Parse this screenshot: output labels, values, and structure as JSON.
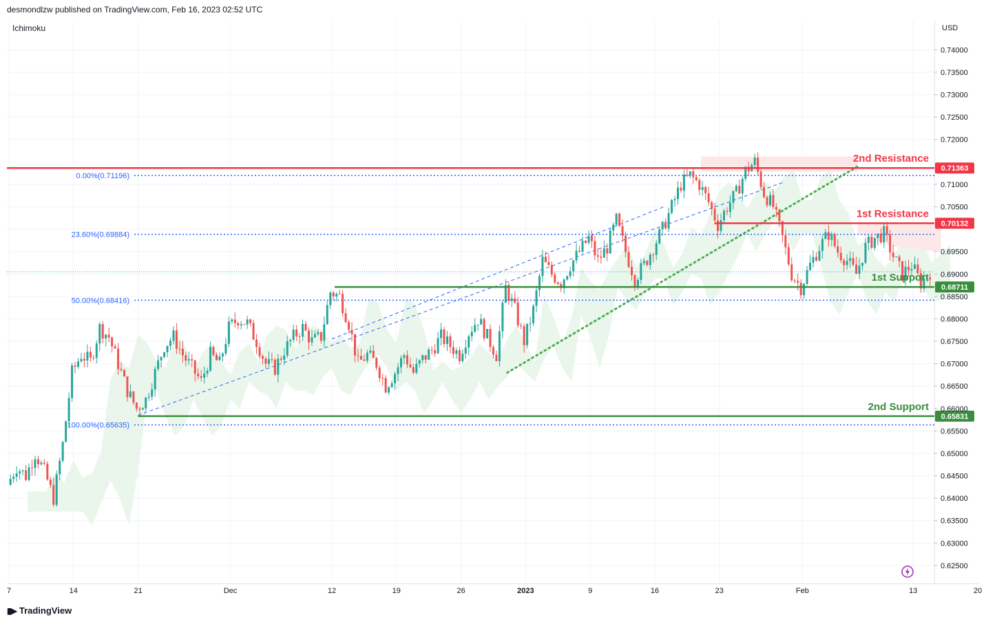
{
  "header": {
    "publisher_line": "desmondlzw published on TradingView.com, Feb 16, 2023 02:52 UTC",
    "indicator": "Ichimoku",
    "currency": "USD"
  },
  "footer": {
    "logo_text": "TradingView"
  },
  "colors": {
    "up": "#26a69a",
    "down": "#ef5350",
    "resistance": "#f23645",
    "support": "#388e3c",
    "fib": "#2962ff",
    "trend_green": "#4caf50",
    "cloud_green": "#e8f5e9",
    "cloud_red": "#fde8e8"
  },
  "chart_data": {
    "type": "candlestick",
    "y_axis": {
      "unit": "USD",
      "range": [
        0.621,
        0.7465
      ],
      "ticks": [
        "0.74000",
        "0.73500",
        "0.73000",
        "0.72500",
        "0.72000",
        "0.71500",
        "0.71000",
        "0.70500",
        "0.70000",
        "0.69500",
        "0.69000",
        "0.68500",
        "0.68000",
        "0.67500",
        "0.67000",
        "0.66500",
        "0.66000",
        "0.65500",
        "0.65000",
        "0.64500",
        "0.64000",
        "0.63500",
        "0.63000",
        "0.62500"
      ]
    },
    "x_axis": {
      "ticks": [
        {
          "label": "7",
          "day": 0,
          "bold": false
        },
        {
          "label": "14",
          "day": 7,
          "bold": false
        },
        {
          "label": "21",
          "day": 14,
          "bold": false
        },
        {
          "label": "Dec",
          "day": 24,
          "bold": false
        },
        {
          "label": "12",
          "day": 35,
          "bold": false
        },
        {
          "label": "19",
          "day": 42,
          "bold": false
        },
        {
          "label": "26",
          "day": 49,
          "bold": false
        },
        {
          "label": "2023",
          "day": 56,
          "bold": true
        },
        {
          "label": "9",
          "day": 63,
          "bold": false
        },
        {
          "label": "16",
          "day": 70,
          "bold": false
        },
        {
          "label": "23",
          "day": 77,
          "bold": false
        },
        {
          "label": "Feb",
          "day": 86,
          "bold": false
        },
        {
          "label": "13",
          "day": 98,
          "bold": false
        },
        {
          "label": "20",
          "day": 105,
          "bold": false
        }
      ]
    },
    "path_points": [
      [
        0,
        0.643
      ],
      [
        1,
        0.647
      ],
      [
        2,
        0.645
      ],
      [
        3,
        0.65
      ],
      [
        4,
        0.646
      ],
      [
        5,
        0.64
      ],
      [
        6,
        0.652
      ],
      [
        7,
        0.668
      ],
      [
        8,
        0.672
      ],
      [
        9,
        0.6705
      ],
      [
        10,
        0.678
      ],
      [
        11,
        0.676
      ],
      [
        12,
        0.67
      ],
      [
        13,
        0.664
      ],
      [
        14,
        0.66
      ],
      [
        15,
        0.662
      ],
      [
        16,
        0.668
      ],
      [
        17,
        0.674
      ],
      [
        18,
        0.676
      ],
      [
        19,
        0.672
      ],
      [
        20,
        0.669
      ],
      [
        21,
        0.666
      ],
      [
        22,
        0.672
      ],
      [
        23,
        0.67
      ],
      [
        24,
        0.678
      ],
      [
        25,
        0.68
      ],
      [
        26,
        0.679
      ],
      [
        27,
        0.675
      ],
      [
        28,
        0.67
      ],
      [
        29,
        0.669
      ],
      [
        30,
        0.673
      ],
      [
        31,
        0.676
      ],
      [
        32,
        0.678
      ],
      [
        33,
        0.675
      ],
      [
        34,
        0.676
      ],
      [
        35,
        0.686
      ],
      [
        36,
        0.685
      ],
      [
        37,
        0.679
      ],
      [
        38,
        0.67
      ],
      [
        39,
        0.672
      ],
      [
        40,
        0.67
      ],
      [
        41,
        0.665
      ],
      [
        42,
        0.668
      ],
      [
        43,
        0.672
      ],
      [
        44,
        0.668
      ],
      [
        45,
        0.671
      ],
      [
        46,
        0.673
      ],
      [
        47,
        0.676
      ],
      [
        48,
        0.674
      ],
      [
        49,
        0.672
      ],
      [
        50,
        0.677
      ],
      [
        51,
        0.68
      ],
      [
        52,
        0.676
      ],
      [
        53,
        0.672
      ],
      [
        54,
        0.687
      ],
      [
        55,
        0.682
      ],
      [
        56,
        0.675
      ],
      [
        57,
        0.682
      ],
      [
        58,
        0.693
      ],
      [
        59,
        0.69
      ],
      [
        60,
        0.688
      ],
      [
        61,
        0.692
      ],
      [
        62,
        0.695
      ],
      [
        63,
        0.698
      ],
      [
        64,
        0.693
      ],
      [
        65,
        0.696
      ],
      [
        66,
        0.702
      ],
      [
        67,
        0.695
      ],
      [
        68,
        0.689
      ],
      [
        69,
        0.692
      ],
      [
        70,
        0.696
      ],
      [
        71,
        0.7
      ],
      [
        72,
        0.705
      ],
      [
        73,
        0.71
      ],
      [
        74,
        0.712
      ],
      [
        75,
        0.71
      ],
      [
        76,
        0.706
      ],
      [
        77,
        0.701
      ],
      [
        78,
        0.705
      ],
      [
        79,
        0.708
      ],
      [
        80,
        0.713
      ],
      [
        81,
        0.715
      ],
      [
        82,
        0.708
      ],
      [
        83,
        0.705
      ],
      [
        84,
        0.698
      ],
      [
        85,
        0.69
      ],
      [
        86,
        0.687
      ],
      [
        87,
        0.692
      ],
      [
        88,
        0.696
      ],
      [
        89,
        0.699
      ],
      [
        90,
        0.695
      ],
      [
        91,
        0.693
      ],
      [
        92,
        0.69
      ],
      [
        93,
        0.696
      ],
      [
        94,
        0.698
      ],
      [
        95,
        0.699
      ],
      [
        96,
        0.694
      ],
      [
        97,
        0.69
      ],
      [
        98,
        0.692
      ],
      [
        99,
        0.688
      ],
      [
        100,
        0.6905
      ]
    ],
    "levels": [
      {
        "label": "2nd Resistance",
        "value": "0.71363",
        "price": 0.71363,
        "type": "resistance"
      },
      {
        "label": "1st Resistance",
        "value": "0.70132",
        "price": 0.70132,
        "type": "resistance"
      },
      {
        "label": "1st Support",
        "value": "0.68711",
        "price": 0.68711,
        "type": "support"
      },
      {
        "label": "2nd Support",
        "value": "0.65831",
        "price": 0.65831,
        "type": "support"
      }
    ],
    "fibonacci": [
      {
        "label": "0.00%(0.71196)",
        "price": 0.71196
      },
      {
        "label": "23.60%(0.69884)",
        "price": 0.69884
      },
      {
        "label": "50.00%(0.68416)",
        "price": 0.68416
      },
      {
        "label": "100.00%(0.65635)",
        "price": 0.65635
      }
    ],
    "current_price_line": 0.6905
  }
}
